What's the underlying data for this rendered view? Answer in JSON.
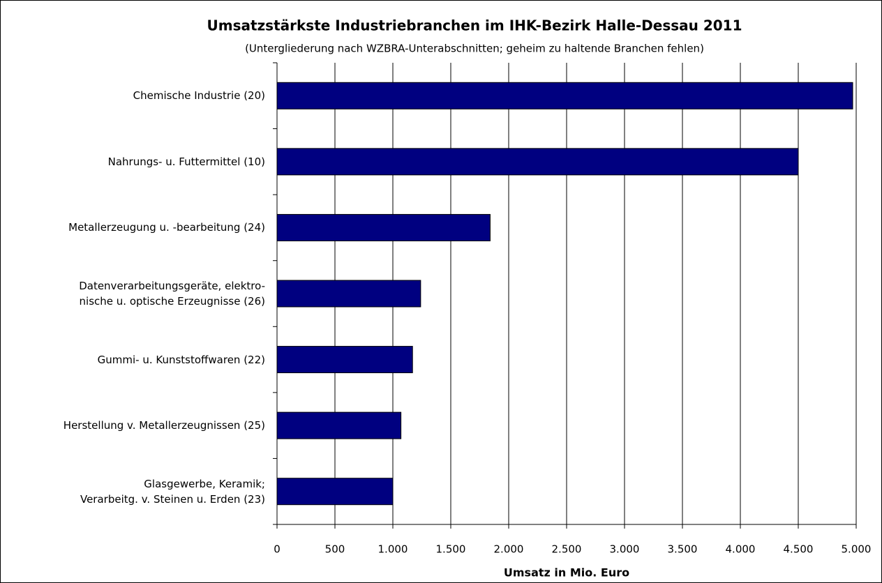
{
  "chart_data": {
    "type": "barh",
    "title": "Umsatzstärkste Industriebranchen im IHK-Bezirk Halle-Dessau 2011",
    "subtitle": "(Untergliederung nach WZBRA-Unterabschnitten; geheim zu haltende Branchen fehlen)",
    "xlabel": "Umsatz in Mio. Euro",
    "categories": [
      "Chemische Industrie (20)",
      "Nahrungs- u. Futtermittel (10)",
      "Metallerzeugung u. -bearbeitung (24)",
      "Datenverarbeitungsgeräte, elektro-\nnische u. optische Erzeugnisse (26)",
      "Gummi- u. Kunststoffwaren (22)",
      "Herstellung v. Metallerzeugnissen (25)",
      "Glasgewerbe, Keramik;\nVerarbeitg. v. Steinen u. Erden (23)"
    ],
    "values": [
      4970,
      4500,
      1840,
      1240,
      1170,
      1070,
      1000
    ],
    "color": "#000080",
    "xlim": [
      0,
      5000
    ],
    "xticks": [
      0,
      500,
      {
        "value": 1000,
        "label": "1.000"
      },
      {
        "value": 1500,
        "label": "1.500"
      },
      {
        "value": 2000,
        "label": "2.000"
      },
      {
        "value": 2500,
        "label": "2.500"
      },
      {
        "value": 3000,
        "label": "3.000"
      },
      {
        "value": 3500,
        "label": "3.500"
      },
      {
        "value": 4000,
        "label": "4.000"
      },
      {
        "value": 4500,
        "label": "4.500"
      },
      {
        "value": 5000,
        "label": "5.000"
      }
    ],
    "grid": true
  }
}
